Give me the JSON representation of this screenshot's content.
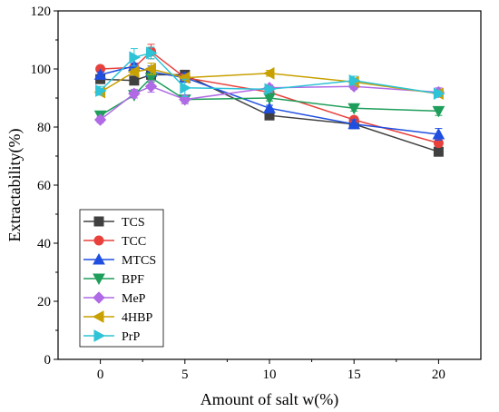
{
  "chart_data": {
    "type": "line",
    "xlabel": "Amount of salt w(%)",
    "ylabel": "Extractability(%)",
    "xlim": [
      -2.5,
      22.5
    ],
    "ylim": [
      0,
      120
    ],
    "xticks": [
      0,
      5,
      10,
      15,
      20
    ],
    "yticks": [
      0,
      20,
      40,
      60,
      80,
      100,
      120
    ],
    "grid": false,
    "legend_position": "bottom-left",
    "x": [
      0,
      2,
      3,
      5,
      10,
      15,
      20
    ],
    "series": [
      {
        "name": "TCS",
        "color": "#404040",
        "marker": "square",
        "values": [
          96.5,
          96,
          98,
          98,
          84,
          81,
          71.5
        ],
        "errors": [
          1.5,
          1,
          2,
          1.5,
          1,
          1.5,
          1.5
        ]
      },
      {
        "name": "TCC",
        "color": "#e8413c",
        "marker": "circle",
        "values": [
          100,
          100.5,
          106,
          97,
          92,
          82.5,
          74.5
        ],
        "errors": [
          1,
          1,
          2.5,
          1.5,
          1,
          1,
          1
        ]
      },
      {
        "name": "MTCS",
        "color": "#1f4fe0",
        "marker": "triangle-up",
        "values": [
          98,
          101,
          99,
          97,
          86.5,
          81,
          77.5
        ],
        "errors": [
          1,
          1,
          2,
          1.5,
          1,
          1.5,
          2
        ]
      },
      {
        "name": "BPF",
        "color": "#1e9e5a",
        "marker": "triangle-down",
        "values": [
          84,
          91,
          97,
          89.5,
          90,
          86.5,
          85.5
        ],
        "errors": [
          1,
          1,
          1.5,
          1,
          1,
          1,
          1.5
        ]
      },
      {
        "name": "MeP",
        "color": "#b06ae6",
        "marker": "diamond",
        "values": [
          82.5,
          91.5,
          94,
          89.5,
          93.5,
          94,
          92
        ],
        "errors": [
          1,
          1.5,
          2,
          1.5,
          1,
          1,
          1.5
        ]
      },
      {
        "name": "4HBP",
        "color": "#c8a000",
        "marker": "triangle-left",
        "values": [
          92,
          99,
          100,
          97,
          98.5,
          95.5,
          91.5
        ],
        "errors": [
          1,
          1,
          2,
          1,
          1,
          1,
          1
        ]
      },
      {
        "name": "PrP",
        "color": "#2ec3d6",
        "marker": "triangle-right",
        "values": [
          92.5,
          104,
          105.5,
          93.5,
          93,
          96,
          91.5
        ],
        "errors": [
          1.5,
          3,
          2,
          3,
          1,
          1.5,
          1
        ]
      }
    ]
  }
}
